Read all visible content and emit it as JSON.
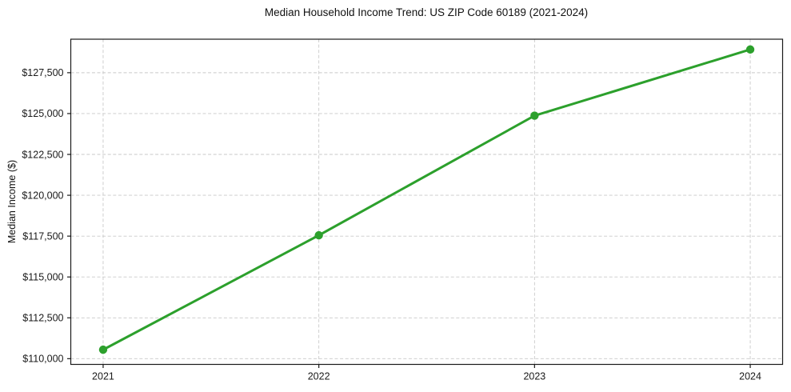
{
  "chart_data": {
    "type": "line",
    "title": "Median Household Income Trend: US ZIP Code 60189 (2021-2024)",
    "xlabel": "",
    "ylabel": "Median Income ($)",
    "x": [
      2021,
      2022,
      2023,
      2024
    ],
    "x_tick_labels": [
      "2021",
      "2022",
      "2023",
      "2024"
    ],
    "series": [
      {
        "name": "Median Household Income",
        "values": [
          110550,
          117550,
          124870,
          128920
        ]
      }
    ],
    "y_ticks": [
      110000,
      112500,
      115000,
      117500,
      120000,
      122500,
      125000,
      127500
    ],
    "y_tick_labels": [
      "$110,000",
      "$112,500",
      "$115,000",
      "$117,500",
      "$120,000",
      "$122,500",
      "$125,000",
      "$127,500"
    ],
    "xlim": [
      2020.85,
      2024.15
    ],
    "ylim": [
      109650,
      129550
    ],
    "grid": true,
    "legend": "none",
    "line_color": "#2ca02c",
    "grid_color": "#c9c9c9",
    "spine_color": "#1a1a1a",
    "marker": "circle"
  }
}
